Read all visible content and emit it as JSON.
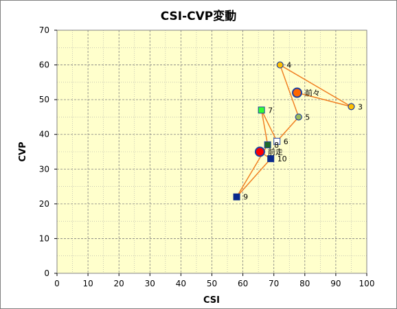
{
  "chart_data": {
    "type": "scatter",
    "title": "CSI-CVP変動",
    "xlabel": "CSI",
    "ylabel": "CVP",
    "xlim": [
      0,
      100
    ],
    "ylim": [
      0,
      70
    ],
    "x_major_step": 10,
    "y_major_step": 10,
    "x_minor_step": 5,
    "y_minor_step": 5,
    "grid": true,
    "colors": {
      "plot_bg": "#ffffcc",
      "grid": "#a6a6a6",
      "line": "#f07f22"
    },
    "path_order": [
      "前走",
      "10",
      "9",
      "8",
      "7",
      "6",
      "5",
      "4",
      "3",
      "前々"
    ],
    "points": [
      {
        "label": "3",
        "x": 95,
        "y": 48,
        "marker": "circle",
        "fill": "#ffc000",
        "stroke": "#1f3fa0",
        "size": 9
      },
      {
        "label": "4",
        "x": 72,
        "y": 60,
        "marker": "circle",
        "fill": "#ffc000",
        "stroke": "#1f3fa0",
        "size": 9
      },
      {
        "label": "5",
        "x": 78,
        "y": 45,
        "marker": "circle",
        "fill": "#9bbb59",
        "stroke": "#1f3fa0",
        "size": 9
      },
      {
        "label": "6",
        "x": 71,
        "y": 38,
        "marker": "square",
        "fill": "#ffffff",
        "stroke": "#1f3fa0",
        "size": 9
      },
      {
        "label": "7",
        "x": 66,
        "y": 47,
        "marker": "square",
        "fill": "#33ff33",
        "stroke": "#1f3fa0",
        "size": 9
      },
      {
        "label": "8",
        "x": 68,
        "y": 37,
        "marker": "square",
        "fill": "#1f6b2a",
        "stroke": "#1f3fa0",
        "size": 9
      },
      {
        "label": "9",
        "x": 58,
        "y": 22,
        "marker": "square",
        "fill": "#0a2a8c",
        "stroke": "#0a2a8c",
        "size": 9
      },
      {
        "label": "10",
        "x": 69,
        "y": 33,
        "marker": "square",
        "fill": "#0a2a8c",
        "stroke": "#0a2a8c",
        "size": 9
      },
      {
        "label": "前々",
        "x": 77.5,
        "y": 52,
        "marker": "big-circle",
        "fill": "#ff6600",
        "stroke": "#1f3fa0",
        "size": 13
      },
      {
        "label": "前走",
        "x": 65.5,
        "y": 35,
        "marker": "big-circle",
        "fill": "#ff0000",
        "stroke": "#1f3fa0",
        "size": 13
      }
    ]
  }
}
